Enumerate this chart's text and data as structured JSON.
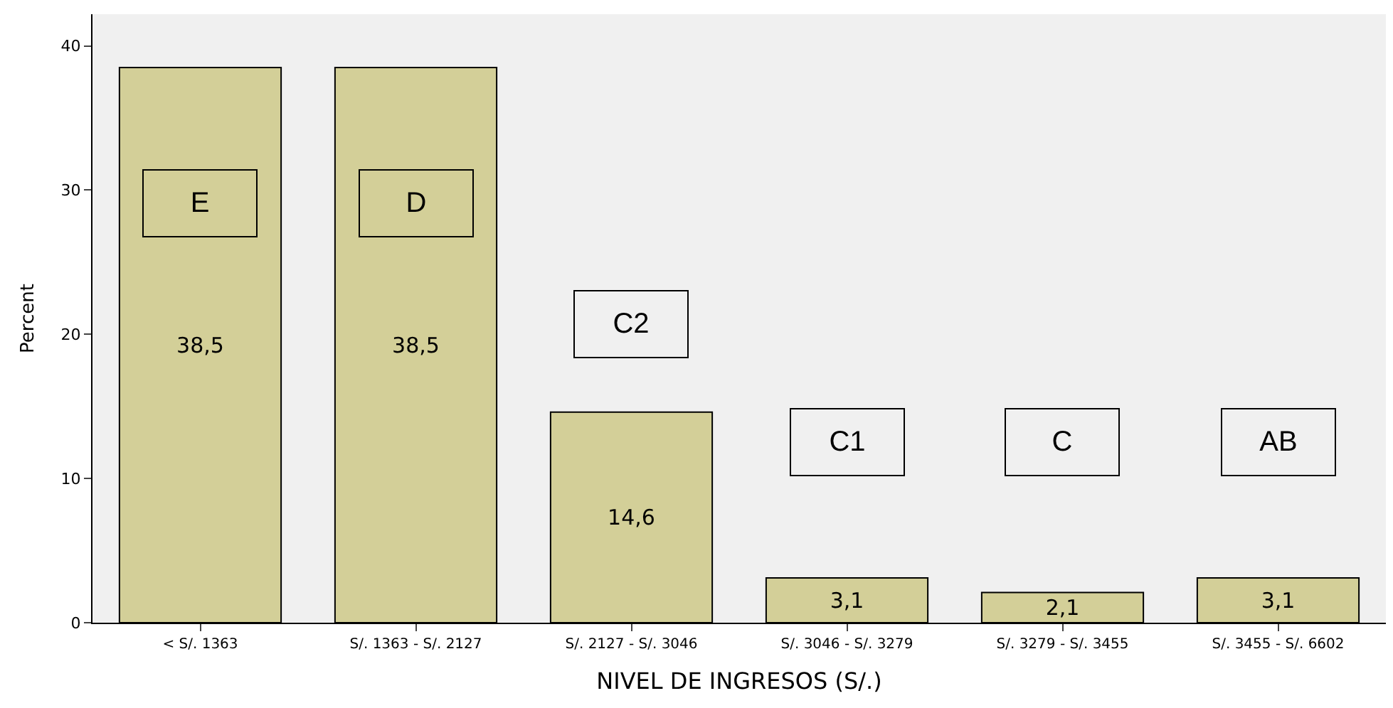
{
  "chart_data": {
    "type": "bar",
    "xlabel": "NIVEL DE INGRESOS (S/.)",
    "ylabel": "Percent",
    "categories": [
      "< S/. 1363",
      "S/. 1363 - S/. 2127",
      "S/. 2127 - S/. 3046",
      "S/. 3046 - S/. 3279",
      "S/. 3279 - S/. 3455",
      "S/. 3455 - S/. 6602"
    ],
    "values": [
      38.5,
      38.5,
      14.6,
      3.1,
      2.1,
      3.1
    ],
    "value_labels": [
      "38,5",
      "38,5",
      "14,6",
      "3,1",
      "2,1",
      "3,1"
    ],
    "color": "#d3cf98",
    "ylim": [
      0,
      42.2
    ],
    "yticks": [
      0,
      10,
      20,
      30,
      40
    ],
    "grid": false,
    "annotations": [
      "E",
      "D",
      "C2",
      "C1",
      "C",
      "AB"
    ]
  }
}
